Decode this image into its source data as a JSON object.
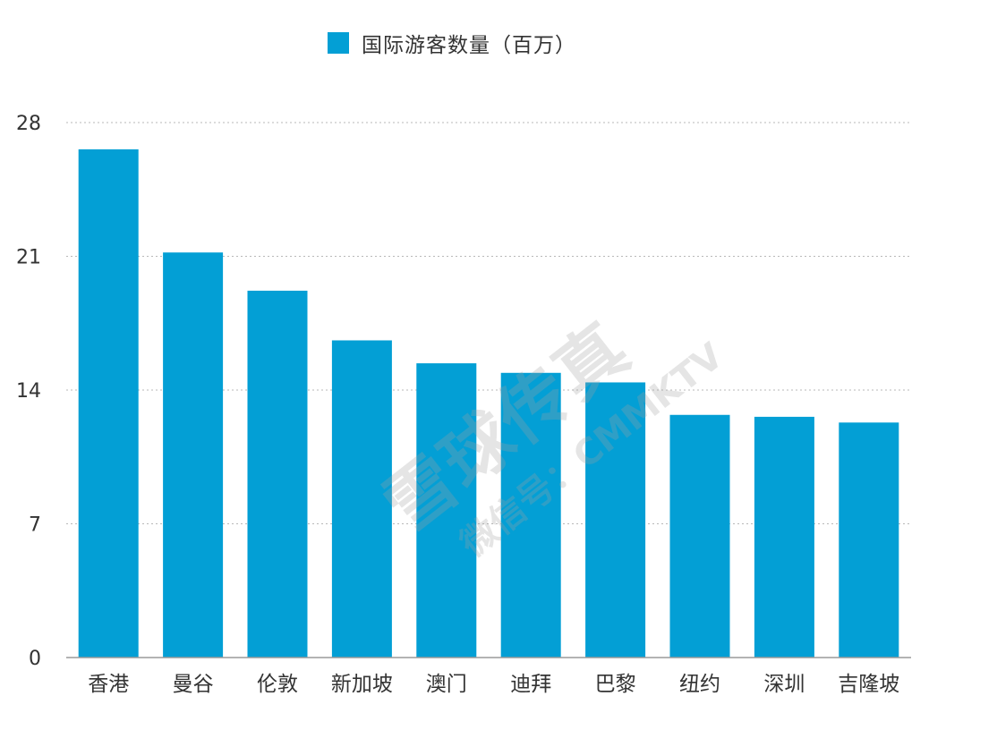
{
  "chart_data": {
    "type": "bar",
    "legend": {
      "label": "国际游客数量（百万）",
      "placement": "top-center"
    },
    "categories": [
      "香港",
      "曼谷",
      "伦敦",
      "新加坡",
      "澳门",
      "迪拜",
      "巴黎",
      "纽约",
      "深圳",
      "吉隆坡"
    ],
    "series": [
      {
        "name": "国际游客数量（百万）",
        "values": [
          26.6,
          21.2,
          19.2,
          16.6,
          15.4,
          14.9,
          14.4,
          12.7,
          12.6,
          12.3
        ]
      }
    ],
    "ylim": [
      0,
      28
    ],
    "yticks": [
      "0",
      "7",
      "14",
      "21",
      "28"
    ],
    "grid": "horizontal-dotted",
    "color": "#039fd5"
  },
  "watermark": {
    "main": "雪球传真",
    "sub": "微信号：CMMKTV"
  }
}
